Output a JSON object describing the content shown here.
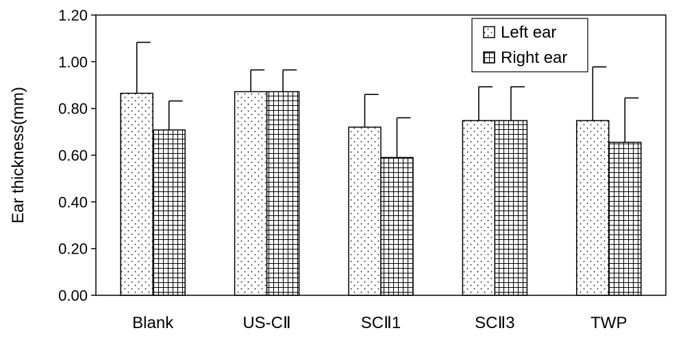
{
  "chart_data": {
    "type": "bar",
    "title": "",
    "xlabel": "",
    "ylabel": "Ear thickness(mm)",
    "ylim": [
      0,
      1.2
    ],
    "yticks": [
      "0.00",
      "0.20",
      "0.40",
      "0.60",
      "0.80",
      "1.00",
      "1.20"
    ],
    "categories": [
      "Blank",
      "US-CⅡ",
      "SCⅡ1",
      "SCⅡ3",
      "TWP"
    ],
    "series": [
      {
        "name": "Left ear",
        "pattern": "dots",
        "values": [
          0.865,
          0.872,
          0.72,
          0.748,
          0.748
        ],
        "errors": [
          0.218,
          0.093,
          0.14,
          0.145,
          0.23
        ]
      },
      {
        "name": "Right ear",
        "pattern": "grid",
        "values": [
          0.708,
          0.872,
          0.59,
          0.748,
          0.655
        ],
        "errors": [
          0.124,
          0.093,
          0.17,
          0.145,
          0.19
        ]
      }
    ],
    "legend_position": "top-right",
    "grid": false,
    "colors": {
      "bar_fill": "#ffffff",
      "stroke": "#000000",
      "pattern": "#000000"
    }
  }
}
